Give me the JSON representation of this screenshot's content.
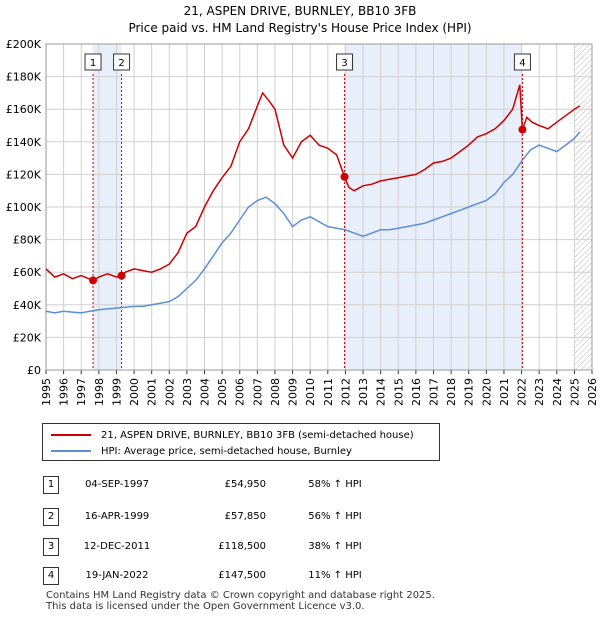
{
  "title": "21, ASPEN DRIVE, BURNLEY, BB10 3FB",
  "subtitle": "Price paid vs. HM Land Registry's House Price Index (HPI)",
  "colors": {
    "property": "#cc0000",
    "hpi": "#5b8fd6",
    "shade": "#e8eefa",
    "grid": "#d0d0d0"
  },
  "legend": {
    "property_label": "21, ASPEN DRIVE, BURNLEY, BB10 3FB (semi-detached house)",
    "hpi_label": "HPI: Average price, semi-detached house, Burnley"
  },
  "transactions": [
    {
      "num": "1",
      "date": "04-SEP-1997",
      "price": "£54,950",
      "hpi": "58% ↑ HPI"
    },
    {
      "num": "2",
      "date": "16-APR-1999",
      "price": "£57,850",
      "hpi": "56% ↑ HPI"
    },
    {
      "num": "3",
      "date": "12-DEC-2011",
      "price": "£118,500",
      "hpi": "38% ↑ HPI"
    },
    {
      "num": "4",
      "date": "19-JAN-2022",
      "price": "£147,500",
      "hpi": "11% ↑ HPI"
    }
  ],
  "footer": {
    "line1": "Contains HM Land Registry data © Crown copyright and database right 2025.",
    "line2": "This data is licensed under the Open Government Licence v3.0."
  },
  "chart_data": {
    "type": "line",
    "title": "21, ASPEN DRIVE, BURNLEY, BB10 3FB",
    "subtitle": "Price paid vs. HM Land Registry's House Price Index (HPI)",
    "xlim": [
      1995,
      2026
    ],
    "ylim": [
      0,
      200000
    ],
    "x_ticks": [
      "1995",
      "1996",
      "1997",
      "1998",
      "1999",
      "2000",
      "2001",
      "2002",
      "2003",
      "2004",
      "2005",
      "2006",
      "2007",
      "2008",
      "2009",
      "2010",
      "2011",
      "2012",
      "2013",
      "2014",
      "2015",
      "2016",
      "2017",
      "2018",
      "2019",
      "2020",
      "2021",
      "2022",
      "2023",
      "2024",
      "2025",
      "2026"
    ],
    "y_ticks": [
      {
        "value": 0,
        "label": "£0"
      },
      {
        "value": 20000,
        "label": "£20K"
      },
      {
        "value": 40000,
        "label": "£40K"
      },
      {
        "value": 60000,
        "label": "£60K"
      },
      {
        "value": 80000,
        "label": "£80K"
      },
      {
        "value": 100000,
        "label": "£100K"
      },
      {
        "value": 120000,
        "label": "£120K"
      },
      {
        "value": 140000,
        "label": "£140K"
      },
      {
        "value": 160000,
        "label": "£160K"
      },
      {
        "value": 180000,
        "label": "£180K"
      },
      {
        "value": 200000,
        "label": "£200K"
      }
    ],
    "shaded_periods": [
      [
        1997.67,
        1999.29
      ],
      [
        2011.95,
        2022.05
      ]
    ],
    "future_hatch_from": 2025.0,
    "markers": [
      {
        "label": "1",
        "x": 1997.67,
        "y": 54950
      },
      {
        "label": "2",
        "x": 1999.29,
        "y": 57850
      },
      {
        "label": "3",
        "x": 2011.95,
        "y": 118500
      },
      {
        "label": "4",
        "x": 2022.05,
        "y": 147500
      }
    ],
    "series": [
      {
        "name": "21, ASPEN DRIVE, BURNLEY, BB10 3FB (semi-detached house)",
        "x": [
          1995,
          1995.5,
          1996,
          1996.5,
          1997,
          1997.67,
          1998,
          1998.5,
          1999,
          1999.29,
          1999.5,
          2000,
          2000.5,
          2001,
          2001.5,
          2002,
          2002.5,
          2003,
          2003.5,
          2004,
          2004.5,
          2005,
          2005.5,
          2006,
          2006.5,
          2007,
          2007.3,
          2007.6,
          2008,
          2008.5,
          2009,
          2009.5,
          2010,
          2010.5,
          2011,
          2011.5,
          2011.95,
          2012.2,
          2012.5,
          2013,
          2013.5,
          2014,
          2014.5,
          2015,
          2015.5,
          2016,
          2016.5,
          2017,
          2017.5,
          2018,
          2018.5,
          2019,
          2019.5,
          2020,
          2020.5,
          2021,
          2021.5,
          2021.9,
          2022.05,
          2022.3,
          2022.6,
          2023,
          2023.5,
          2024,
          2024.5,
          2025,
          2025.3
        ],
        "values": [
          62000,
          57000,
          59000,
          56000,
          58000,
          54950,
          57000,
          59000,
          57000,
          57850,
          60000,
          62000,
          61000,
          60000,
          62000,
          65000,
          72000,
          84000,
          88000,
          100000,
          110000,
          118000,
          125000,
          140000,
          148000,
          162000,
          170000,
          166000,
          160000,
          138000,
          130000,
          140000,
          144000,
          138000,
          136000,
          132000,
          118500,
          112000,
          110000,
          113000,
          114000,
          116000,
          117000,
          118000,
          119000,
          120000,
          123000,
          127000,
          128000,
          130000,
          134000,
          138000,
          143000,
          145000,
          148000,
          153000,
          160000,
          175000,
          147500,
          155000,
          152000,
          150000,
          148000,
          152000,
          156000,
          160000,
          162000
        ]
      },
      {
        "name": "HPI: Average price, semi-detached house, Burnley",
        "x": [
          1995,
          1995.5,
          1996,
          1996.5,
          1997,
          1997.5,
          1998,
          1998.5,
          1999,
          1999.5,
          2000,
          2000.5,
          2001,
          2001.5,
          2002,
          2002.5,
          2003,
          2003.5,
          2004,
          2004.5,
          2005,
          2005.5,
          2006,
          2006.5,
          2007,
          2007.5,
          2008,
          2008.5,
          2009,
          2009.5,
          2010,
          2010.5,
          2011,
          2011.5,
          2012,
          2012.5,
          2013,
          2013.5,
          2014,
          2014.5,
          2015,
          2015.5,
          2016,
          2016.5,
          2017,
          2017.5,
          2018,
          2018.5,
          2019,
          2019.5,
          2020,
          2020.5,
          2021,
          2021.5,
          2022,
          2022.5,
          2023,
          2023.5,
          2024,
          2024.5,
          2025,
          2025.3
        ],
        "values": [
          36000,
          35000,
          36000,
          35500,
          35000,
          36000,
          37000,
          37500,
          38000,
          38500,
          39000,
          39000,
          40000,
          41000,
          42000,
          45000,
          50000,
          55000,
          62000,
          70000,
          78000,
          84000,
          92000,
          100000,
          104000,
          106000,
          102000,
          96000,
          88000,
          92000,
          94000,
          91000,
          88000,
          87000,
          86000,
          84000,
          82000,
          84000,
          86000,
          86000,
          87000,
          88000,
          89000,
          90000,
          92000,
          94000,
          96000,
          98000,
          100000,
          102000,
          104000,
          108000,
          115000,
          120000,
          128000,
          135000,
          138000,
          136000,
          134000,
          138000,
          142000,
          146000
        ]
      }
    ]
  }
}
